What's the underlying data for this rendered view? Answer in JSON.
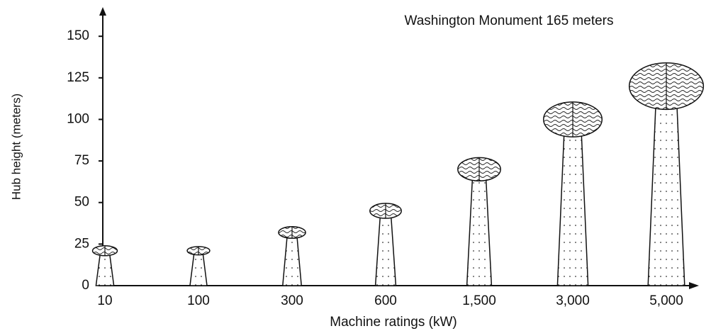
{
  "chart_data": {
    "type": "bubble",
    "title": "Washington Monument 165 meters",
    "x_label": "Machine ratings (kW)",
    "y_label": "Hub height (meters)",
    "categories": [
      "10",
      "100",
      "300",
      "600",
      "1,500",
      "3,000",
      "5,000"
    ],
    "values": [
      21,
      21,
      32,
      45,
      70,
      100,
      120
    ],
    "sizes": [
      6,
      5,
      7,
      9,
      14,
      21,
      28
    ],
    "ylim": [
      0,
      165
    ],
    "yticks": [
      0,
      25,
      50,
      75,
      100,
      125,
      150
    ]
  }
}
